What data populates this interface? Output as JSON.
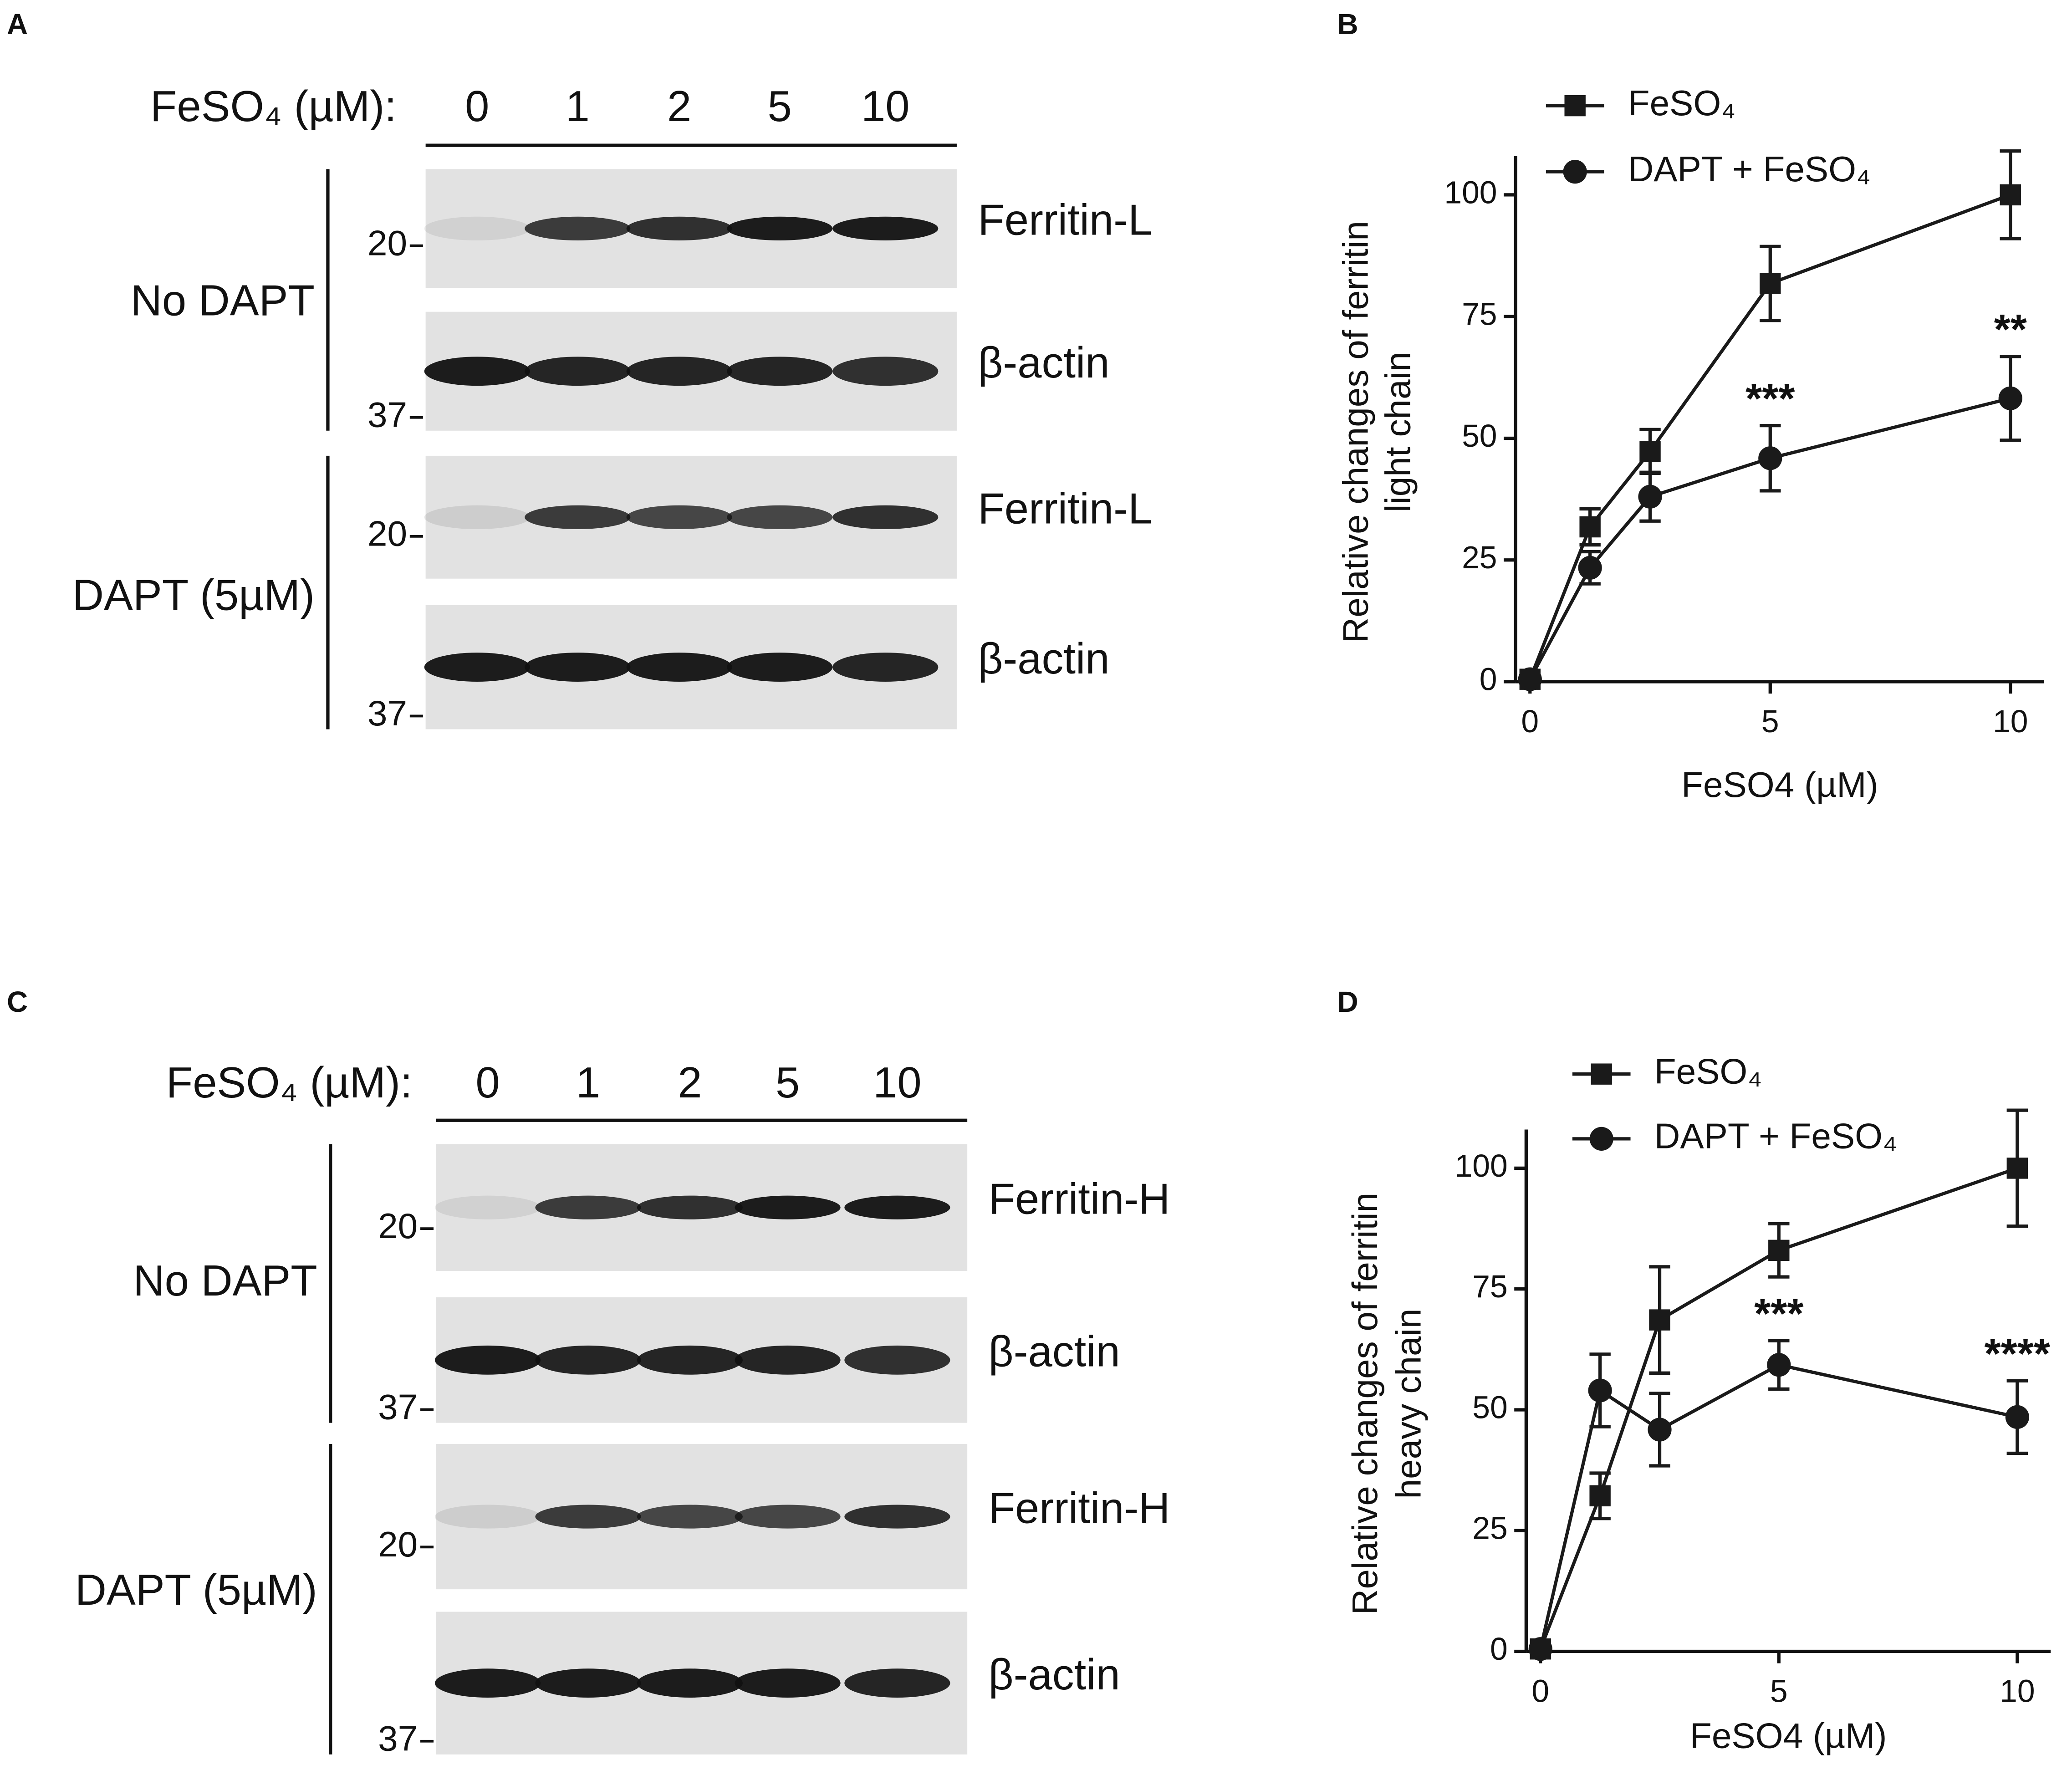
{
  "blots": [
    {
      "panel": "A",
      "header": "FeSO₄ (µM):",
      "lanes": [
        "0",
        "1",
        "2",
        "5",
        "10"
      ],
      "groups": [
        {
          "label": "No DAPT",
          "rows": [
            {
              "marker": "20",
              "band": "Ferritin-L"
            },
            {
              "marker": "37",
              "band": "β-actin"
            }
          ]
        },
        {
          "label": "DAPT (5µM)",
          "rows": [
            {
              "marker": "20",
              "band": "Ferritin-L"
            },
            {
              "marker": "37",
              "band": "β-actin"
            }
          ]
        }
      ]
    },
    {
      "panel": "C",
      "header": "FeSO₄ (µM):",
      "lanes": [
        "0",
        "1",
        "2",
        "5",
        "10"
      ],
      "groups": [
        {
          "label": "No DAPT",
          "rows": [
            {
              "marker": "20",
              "band": "Ferritin-H"
            },
            {
              "marker": "37",
              "band": "β-actin"
            }
          ]
        },
        {
          "label": "DAPT (5µM)",
          "rows": [
            {
              "marker": "20",
              "band": "Ferritin-H"
            },
            {
              "marker": "37",
              "band": "β-actin"
            }
          ]
        }
      ]
    }
  ],
  "chart_data": [
    {
      "type": "line",
      "panel": "B",
      "xlabel": "FeSO4 (µM)",
      "ylabel": [
        "Relative changes of ferritin",
        "light chain"
      ],
      "x": [
        0,
        1.25,
        2.5,
        5,
        10
      ],
      "xlim": [
        -0.3,
        10.7
      ],
      "xticks": [
        0,
        5,
        10
      ],
      "ylim": [
        0,
        108
      ],
      "yticks": [
        0,
        25,
        50,
        75,
        100
      ],
      "series": [
        {
          "name": "FeSO₄",
          "color": "#1a1a1a",
          "marker": "square",
          "values": [
            0.5,
            31.8,
            47.3,
            81.8,
            100
          ],
          "errors": [
            0,
            3.7,
            4.5,
            7.6,
            9
          ]
        },
        {
          "name": "DAPT + FeSO₄",
          "color": "#1a1a1a",
          "marker": "circle",
          "values": [
            0.5,
            23.4,
            38,
            45.9,
            58.2
          ],
          "errors": [
            0,
            3.3,
            5,
            6.7,
            8.6
          ],
          "annotations": [
            null,
            null,
            null,
            "***",
            "**"
          ]
        }
      ]
    },
    {
      "type": "line",
      "panel": "D",
      "xlabel": "FeSO4 (µM)",
      "ylabel": [
        "Relative changes of ferritin",
        "heavy chain"
      ],
      "x": [
        0,
        1.25,
        2.5,
        5,
        10
      ],
      "xlim": [
        -0.3,
        10.7
      ],
      "xticks": [
        0,
        5,
        10
      ],
      "ylim": [
        0,
        108
      ],
      "yticks": [
        0,
        25,
        50,
        75,
        100
      ],
      "series": [
        {
          "name": "FeSO₄",
          "color": "#1a1a1a",
          "marker": "square",
          "values": [
            0.5,
            32.2,
            68.6,
            83,
            100
          ],
          "errors": [
            0,
            4.7,
            11,
            5.5,
            12
          ]
        },
        {
          "name": "DAPT + FeSO₄",
          "color": "#1a1a1a",
          "marker": "circle",
          "values": [
            0.5,
            54,
            45.9,
            59.3,
            48.5
          ],
          "errors": [
            0,
            7.5,
            7.5,
            5,
            7.5
          ],
          "annotations": [
            null,
            null,
            null,
            "***",
            "****"
          ]
        }
      ]
    }
  ]
}
